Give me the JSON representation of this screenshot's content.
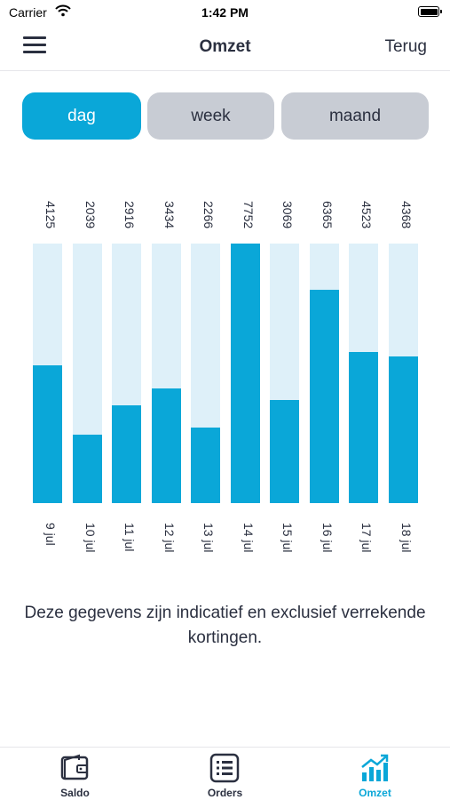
{
  "status_bar": {
    "carrier": "Carrier",
    "time": "1:42 PM"
  },
  "nav": {
    "title": "Omzet",
    "back_label": "Terug",
    "menu_icon": "hamburger-icon"
  },
  "segments": [
    {
      "label": "dag",
      "active": true
    },
    {
      "label": "week",
      "active": false
    },
    {
      "label": "maand",
      "active": false
    }
  ],
  "chart_data": {
    "type": "bar",
    "categories": [
      "9 jul",
      "10 jul",
      "11 jul",
      "12 jul",
      "13 jul",
      "14 jul",
      "15 jul",
      "16 jul",
      "17 jul",
      "18 jul"
    ],
    "values": [
      4125,
      2039,
      2916,
      3434,
      2266,
      7752,
      3069,
      6365,
      4523,
      4368
    ],
    "value_labels": [
      "4125",
      "2039",
      "2916",
      "3434",
      "2266",
      "7752",
      "3069",
      "6365",
      "4523",
      "4368"
    ],
    "ylim": [
      0,
      7752
    ],
    "colors": {
      "fill": "#0aa7d8",
      "track": "#def0f9"
    }
  },
  "disclaimer": "Deze gegevens zijn indicatief en exclusief verrekende kortingen.",
  "tabbar": {
    "items": [
      {
        "label": "Saldo",
        "icon": "wallet-icon",
        "active": false
      },
      {
        "label": "Orders",
        "icon": "list-icon",
        "active": false
      },
      {
        "label": "Omzet",
        "icon": "chart-icon",
        "active": true
      }
    ]
  },
  "colors": {
    "accent": "#0aa7d8",
    "text": "#2b3040",
    "inactive_segment": "#c8ccd4"
  }
}
